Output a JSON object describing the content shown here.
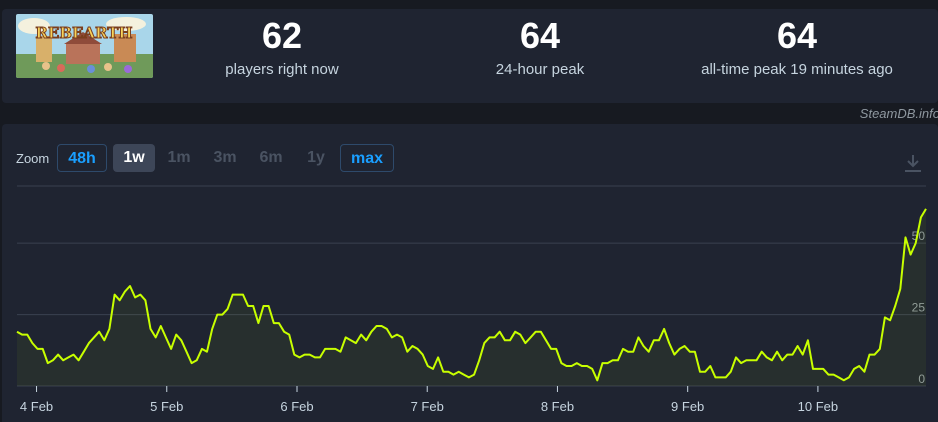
{
  "stats": [
    {
      "value": "62",
      "label": "players right now"
    },
    {
      "value": "64",
      "label": "24-hour peak"
    },
    {
      "value": "64",
      "label": "all-time peak 19 minutes ago"
    }
  ],
  "game": {
    "title_art": "REBEARTH"
  },
  "credit": "SteamDB.info",
  "zoom": {
    "label": "Zoom",
    "buttons": [
      {
        "label": "48h",
        "state": "enabled"
      },
      {
        "label": "1w",
        "state": "active"
      },
      {
        "label": "1m",
        "state": "disabled"
      },
      {
        "label": "3m",
        "state": "disabled"
      },
      {
        "label": "6m",
        "state": "disabled"
      },
      {
        "label": "1y",
        "state": "disabled"
      },
      {
        "label": "max",
        "state": "enabled"
      }
    ]
  },
  "icons": {
    "download": "download-icon"
  },
  "colors": {
    "line": "#c8ff00",
    "accent": "#1a9fff",
    "grid": "#3a4150"
  },
  "chart_data": {
    "type": "area",
    "title": "",
    "xlabel": "",
    "ylabel": "",
    "x_ticks": [
      "4 Feb",
      "5 Feb",
      "6 Feb",
      "7 Feb",
      "8 Feb",
      "9 Feb",
      "10 Feb"
    ],
    "y_ticks": [
      0,
      25,
      50
    ],
    "ylim": [
      0,
      70
    ],
    "x_start_day": 3.85,
    "x_end_day": 10.83,
    "grid": true,
    "series": [
      {
        "name": "",
        "color": "#c8ff00",
        "values": [
          19,
          18,
          18,
          15,
          13,
          13,
          8,
          9,
          11,
          9,
          10,
          11,
          9,
          12,
          15,
          17,
          19,
          16,
          20,
          32,
          30,
          33,
          35,
          31,
          32,
          30,
          20,
          17,
          21,
          17,
          13,
          18,
          16,
          12,
          8,
          9,
          13,
          12,
          20,
          25,
          25,
          27,
          32,
          32,
          32,
          28,
          28,
          22,
          28,
          28,
          22,
          22,
          19,
          18,
          11,
          10,
          11,
          11,
          10,
          10,
          13,
          13,
          13,
          12,
          17,
          16,
          15,
          18,
          16,
          19,
          21,
          21,
          20,
          17,
          18,
          17,
          12,
          14,
          13,
          11,
          7,
          6,
          10,
          5,
          5,
          4,
          5,
          4,
          3,
          4,
          9,
          15,
          17,
          17,
          19,
          16,
          16,
          19,
          18,
          15,
          17,
          19,
          19,
          16,
          13,
          13,
          8,
          7,
          7,
          8,
          7,
          7,
          6,
          2,
          8,
          8,
          9,
          9,
          13,
          12,
          12,
          17,
          14,
          12,
          16,
          16,
          20,
          15,
          11,
          13,
          14,
          12,
          12,
          5,
          5,
          7,
          3,
          3,
          3,
          5,
          10,
          8,
          9,
          9,
          9,
          12,
          10,
          9,
          12,
          9,
          11,
          11,
          14,
          11,
          16,
          6,
          6,
          6,
          4,
          4,
          3,
          2,
          3,
          6,
          7,
          5,
          11,
          11,
          13,
          24,
          23,
          28,
          34,
          52,
          46,
          50,
          59,
          62
        ]
      }
    ]
  }
}
